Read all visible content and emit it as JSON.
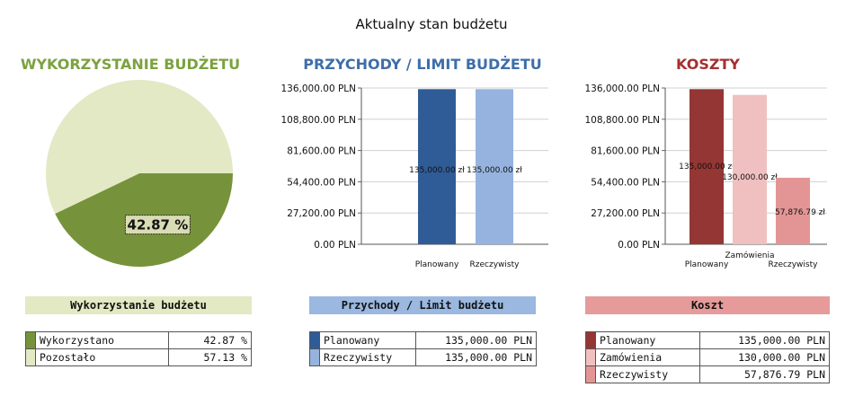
{
  "page": {
    "title": "Aktualny stan budżetu"
  },
  "panels": {
    "usage": {
      "title": "WYKORZYSTANIE BUDŻETU",
      "band": "Wykorzystanie budżetu",
      "title_color": "#7ba23f",
      "band_color": "#e3e9c3"
    },
    "revenue": {
      "title": "PRZYCHODY / LIMIT BUDŻETU",
      "band": "Przychody / Limit budżetu",
      "title_color": "#3e6ea8",
      "band_color": "#9ab8e0"
    },
    "costs": {
      "title": "KOSZTY",
      "band": "Koszt",
      "title_color": "#a33030",
      "band_color": "#e69a9a"
    }
  },
  "chart_data": [
    {
      "id": "usage",
      "type": "pie",
      "title": "WYKORZYSTANIE BUDŻETU",
      "slices": [
        {
          "label": "Wykorzystano",
          "value": 42.87,
          "color": "#76933c"
        },
        {
          "label": "Pozostało",
          "value": 57.13,
          "color": "#e3e9c4"
        }
      ],
      "data_label": "42.87 %"
    },
    {
      "id": "revenue",
      "type": "bar",
      "title": "PRZYCHODY / LIMIT BUDŻETU",
      "categories": [
        "Planowany",
        "Rzeczywisty"
      ],
      "values": [
        135000.0,
        135000.0
      ],
      "colors": [
        "#2f5c97",
        "#95b3de"
      ],
      "data_labels": [
        "135,000.00 zł",
        "135,000.00 zł"
      ],
      "ylim": [
        0,
        136000
      ],
      "yticks": [
        "0.00 PLN",
        "27,200.00 PLN",
        "54,400.00 PLN",
        "81,600.00 PLN",
        "108,800.00 PLN",
        "136,000.00 PLN"
      ],
      "grid": true
    },
    {
      "id": "costs",
      "type": "bar",
      "title": "KOSZTY",
      "categories": [
        "Planowany",
        "Zamówienia",
        "Rzeczywisty"
      ],
      "values": [
        135000.0,
        130000.0,
        57876.79
      ],
      "colors": [
        "#943634",
        "#f0c0c0",
        "#e39595"
      ],
      "data_labels": [
        "135,000.00 zł",
        "130,000.00 zł",
        "57,876.79 zł"
      ],
      "ylim": [
        0,
        136000
      ],
      "yticks": [
        "0.00 PLN",
        "27,200.00 PLN",
        "54,400.00 PLN",
        "81,600.00 PLN",
        "108,800.00 PLN",
        "136,000.00 PLN"
      ],
      "grid": true
    }
  ],
  "tables": {
    "usage": [
      {
        "label": "Wykorzystano",
        "value": "42.87 %",
        "color": "#76933c"
      },
      {
        "label": "Pozostało",
        "value": "57.13 %",
        "color": "#e3e9c4"
      }
    ],
    "revenue": [
      {
        "label": "Planowany",
        "value": "135,000.00 PLN",
        "color": "#2f5c97"
      },
      {
        "label": "Rzeczywisty",
        "value": "135,000.00 PLN",
        "color": "#95b3de"
      }
    ],
    "costs": [
      {
        "label": "Planowany",
        "value": "135,000.00 PLN",
        "color": "#943634"
      },
      {
        "label": "Zamówienia",
        "value": "130,000.00 PLN",
        "color": "#f0c0c0"
      },
      {
        "label": "Rzeczywisty",
        "value": "57,876.79 PLN",
        "color": "#e39595"
      }
    ]
  }
}
